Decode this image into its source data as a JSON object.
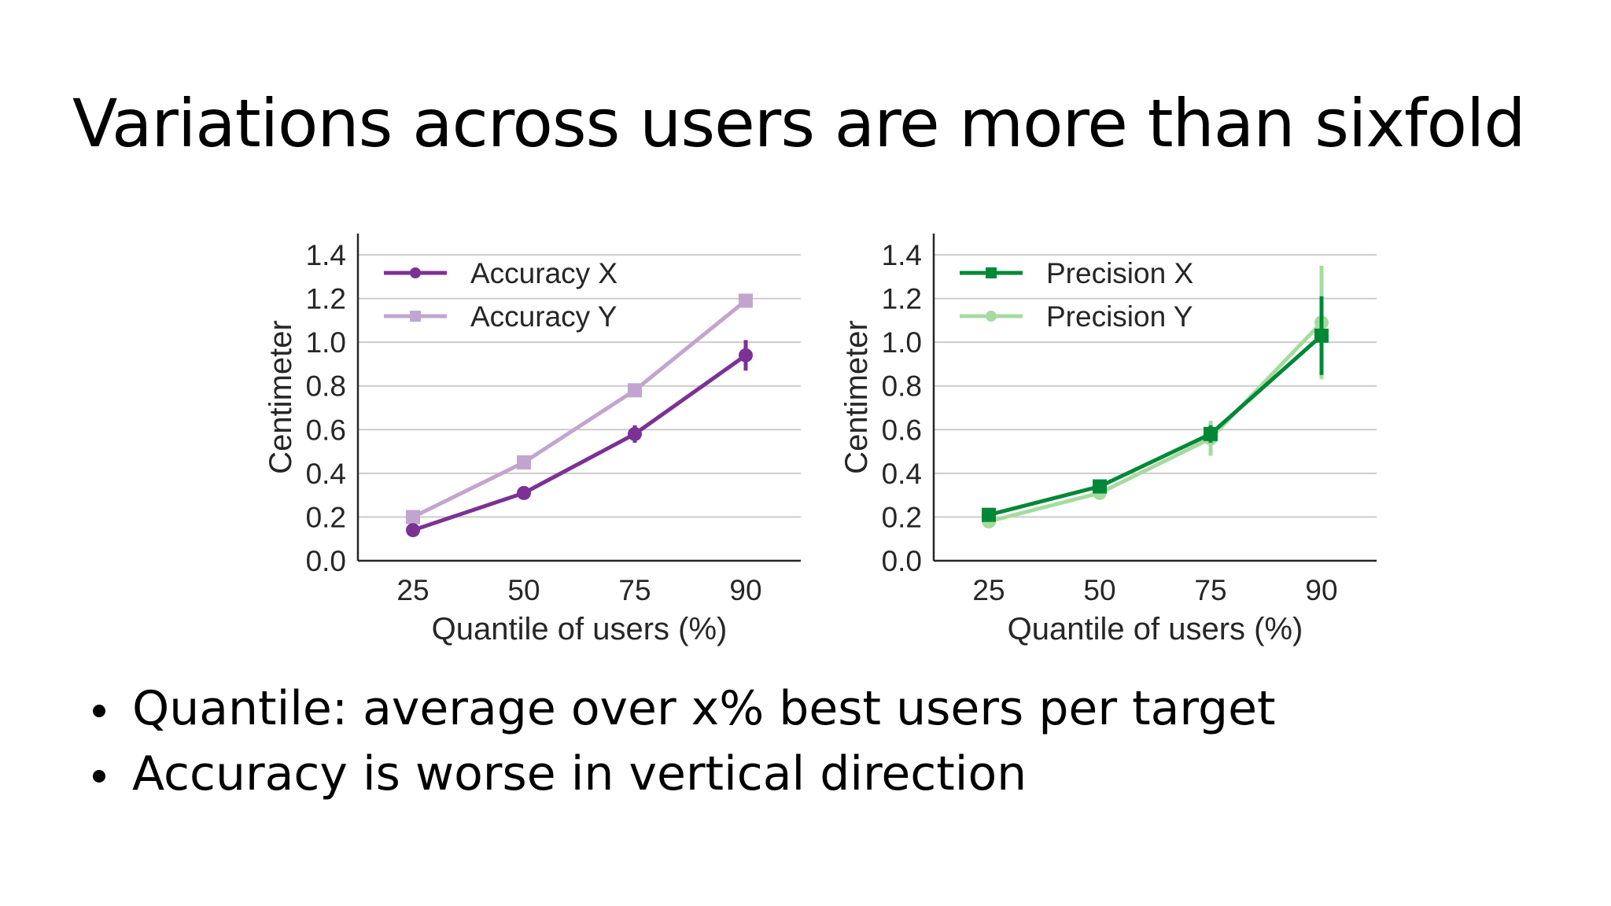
{
  "slide": {
    "title": "Variations across users are more than sixfold",
    "bullets": [
      "Quantile: average over x% best users per target",
      "Accuracy is worse in vertical direction"
    ]
  },
  "chart_data": [
    {
      "type": "line",
      "categories": [
        "25",
        "50",
        "75",
        "90"
      ],
      "xlabel": "Quantile of users (%)",
      "ylabel": "Centimeter",
      "ylim": [
        0,
        1.4
      ],
      "yticks": [
        "0.0",
        "0.2",
        "0.4",
        "0.6",
        "0.8",
        "1.0",
        "1.2",
        "1.4"
      ],
      "grid": true,
      "legend": "top-left",
      "series": [
        {
          "name": "Accuracy X",
          "values": [
            0.14,
            0.31,
            0.58,
            0.94
          ],
          "err": [
            0.01,
            0.01,
            0.04,
            0.07
          ],
          "color": "#7b3294",
          "marker": "circle"
        },
        {
          "name": "Accuracy Y",
          "values": [
            0.2,
            0.45,
            0.78,
            1.19
          ],
          "err": [
            0.01,
            0.01,
            0.02,
            0.03
          ],
          "color": "#c2a5cf",
          "marker": "square"
        }
      ]
    },
    {
      "type": "line",
      "categories": [
        "25",
        "50",
        "75",
        "90"
      ],
      "xlabel": "Quantile of users (%)",
      "ylabel": "Centimeter",
      "ylim": [
        0,
        1.4
      ],
      "yticks": [
        "0.0",
        "0.2",
        "0.4",
        "0.6",
        "0.8",
        "1.0",
        "1.2",
        "1.4"
      ],
      "grid": true,
      "legend": "top-left",
      "series": [
        {
          "name": "Precision X",
          "values": [
            0.21,
            0.34,
            0.58,
            1.03
          ],
          "err": [
            0.01,
            0.01,
            0.04,
            0.18
          ],
          "color": "#008837",
          "marker": "square"
        },
        {
          "name": "Precision Y",
          "values": [
            0.18,
            0.31,
            0.56,
            1.09
          ],
          "err": [
            0.01,
            0.01,
            0.08,
            0.26
          ],
          "color": "#a6dba0",
          "marker": "circle"
        }
      ]
    }
  ]
}
